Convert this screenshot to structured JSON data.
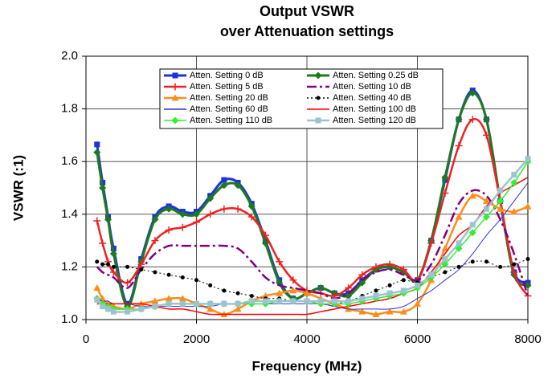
{
  "chart_data": {
    "type": "line",
    "title": "Output VSWR",
    "subtitle": "over Attenuation settings",
    "x_label": "Frequency (MHz)",
    "y_label": "VSWR (:1)",
    "xlim": [
      0,
      8000
    ],
    "xticks": [
      0,
      2000,
      4000,
      6000,
      8000
    ],
    "ylim": [
      1.0,
      2.0
    ],
    "yticks": [
      {
        "value": 1.0,
        "label": "1.0"
      },
      1.2,
      1.4,
      1.6,
      1.8,
      {
        "value": 2.0,
        "label": "2.0"
      }
    ],
    "grid": true,
    "legend": "top",
    "x": [
      200,
      300,
      400,
      500,
      750,
      1000,
      1250,
      1500,
      1750,
      2000,
      2250,
      2500,
      2750,
      3000,
      3250,
      3500,
      3750,
      4000,
      4250,
      4500,
      4750,
      5000,
      5250,
      5500,
      5750,
      6000,
      6250,
      6500,
      6750,
      7000,
      7250,
      7500,
      7750,
      8000
    ],
    "series": [
      {
        "name": "Atten. Setting 0 dB",
        "color": "#1a33dd",
        "marker": "square",
        "dash": "solid",
        "width": 3,
        "values": [
          1.665,
          1.52,
          1.39,
          1.27,
          1.06,
          1.23,
          1.39,
          1.43,
          1.41,
          1.41,
          1.47,
          1.53,
          1.52,
          1.44,
          1.3,
          1.15,
          1.08,
          1.1,
          1.12,
          1.1,
          1.1,
          1.15,
          1.19,
          1.2,
          1.18,
          1.15,
          1.3,
          1.53,
          1.76,
          1.87,
          1.76,
          1.45,
          1.18,
          1.14
        ]
      },
      {
        "name": "Atten. Setting 0.25 dB",
        "color": "#1e7a1e",
        "marker": "diamond",
        "dash": "solid",
        "width": 3,
        "values": [
          1.635,
          1.5,
          1.38,
          1.25,
          1.05,
          1.22,
          1.38,
          1.42,
          1.4,
          1.4,
          1.46,
          1.51,
          1.51,
          1.43,
          1.29,
          1.14,
          1.08,
          1.1,
          1.12,
          1.1,
          1.09,
          1.14,
          1.19,
          1.2,
          1.18,
          1.15,
          1.3,
          1.54,
          1.76,
          1.86,
          1.76,
          1.45,
          1.17,
          1.13
        ]
      },
      {
        "name": "Atten. Setting 5 dB",
        "color": "#ee2222",
        "marker": "plus",
        "dash": "solid",
        "width": 2.5,
        "values": [
          1.375,
          1.29,
          1.22,
          1.18,
          1.14,
          1.21,
          1.3,
          1.34,
          1.35,
          1.37,
          1.4,
          1.42,
          1.42,
          1.39,
          1.32,
          1.22,
          1.15,
          1.11,
          1.1,
          1.09,
          1.12,
          1.17,
          1.2,
          1.21,
          1.19,
          1.15,
          1.29,
          1.48,
          1.66,
          1.76,
          1.7,
          1.45,
          1.18,
          1.09
        ]
      },
      {
        "name": "Atten. Setting 10 dB",
        "color": "#800080",
        "marker": "none",
        "dash": "dashdot",
        "width": 2.5,
        "values": [
          1.2,
          1.18,
          1.17,
          1.16,
          1.12,
          1.19,
          1.25,
          1.28,
          1.28,
          1.28,
          1.28,
          1.28,
          1.27,
          1.22,
          1.16,
          1.13,
          1.12,
          1.11,
          1.1,
          1.08,
          1.1,
          1.15,
          1.18,
          1.19,
          1.17,
          1.15,
          1.21,
          1.32,
          1.44,
          1.49,
          1.47,
          1.38,
          1.25,
          1.09
        ]
      },
      {
        "name": "Atten. Setting 20 dB",
        "color": "#ff8c1a",
        "marker": "triangle",
        "dash": "solid",
        "width": 2.5,
        "values": [
          1.12,
          1.08,
          1.06,
          1.05,
          1.04,
          1.06,
          1.07,
          1.08,
          1.08,
          1.06,
          1.04,
          1.02,
          1.04,
          1.07,
          1.09,
          1.1,
          1.11,
          1.1,
          1.08,
          1.06,
          1.04,
          1.03,
          1.02,
          1.03,
          1.03,
          1.06,
          1.15,
          1.27,
          1.39,
          1.47,
          1.45,
          1.42,
          1.41,
          1.43
        ]
      },
      {
        "name": "Atten. Setting 40 dB",
        "color": "#000000",
        "marker": "circle",
        "dash": "dot",
        "width": 1,
        "values": [
          1.22,
          1.21,
          1.21,
          1.2,
          1.2,
          1.19,
          1.18,
          1.17,
          1.16,
          1.15,
          1.13,
          1.11,
          1.1,
          1.09,
          1.08,
          1.08,
          1.07,
          1.07,
          1.06,
          1.06,
          1.07,
          1.09,
          1.11,
          1.13,
          1.15,
          1.14,
          1.16,
          1.18,
          1.2,
          1.22,
          1.22,
          1.2,
          1.21,
          1.23
        ]
      },
      {
        "name": "Atten. Setting 60 dB",
        "color": "#3333cc",
        "marker": "none",
        "dash": "solid",
        "width": 1,
        "values": [
          1.08,
          1.07,
          1.07,
          1.06,
          1.06,
          1.05,
          1.05,
          1.05,
          1.05,
          1.05,
          1.05,
          1.06,
          1.06,
          1.06,
          1.06,
          1.06,
          1.06,
          1.06,
          1.06,
          1.05,
          1.04,
          1.04,
          1.04,
          1.04,
          1.05,
          1.08,
          1.11,
          1.15,
          1.19,
          1.25,
          1.32,
          1.38,
          1.45,
          1.52
        ]
      },
      {
        "name": "Atten. Setting 100 dB",
        "color": "#ff0000",
        "marker": "none",
        "dash": "solid",
        "width": 1.5,
        "values": [
          1.06,
          1.06,
          1.06,
          1.06,
          1.06,
          1.06,
          1.05,
          1.04,
          1.04,
          1.03,
          1.02,
          1.02,
          1.02,
          1.02,
          1.02,
          1.02,
          1.02,
          1.02,
          1.03,
          1.04,
          1.05,
          1.06,
          1.07,
          1.08,
          1.1,
          1.12,
          1.18,
          1.25,
          1.32,
          1.36,
          1.43,
          1.48,
          1.51,
          1.54
        ]
      },
      {
        "name": "Atten. Setting 110 dB",
        "color": "#33ee33",
        "marker": "diamond",
        "dash": "solid",
        "width": 1.5,
        "values": [
          1.08,
          1.06,
          1.05,
          1.04,
          1.04,
          1.04,
          1.05,
          1.06,
          1.06,
          1.06,
          1.06,
          1.06,
          1.06,
          1.06,
          1.06,
          1.07,
          1.07,
          1.07,
          1.06,
          1.06,
          1.06,
          1.07,
          1.08,
          1.09,
          1.1,
          1.12,
          1.16,
          1.21,
          1.27,
          1.33,
          1.39,
          1.45,
          1.52,
          1.6
        ]
      },
      {
        "name": "Atten. Setting 120 dB",
        "color": "#9cc3d0",
        "marker": "square",
        "dash": "solid",
        "width": 2.5,
        "values": [
          1.075,
          1.05,
          1.04,
          1.03,
          1.03,
          1.04,
          1.05,
          1.06,
          1.06,
          1.06,
          1.06,
          1.06,
          1.06,
          1.07,
          1.07,
          1.07,
          1.07,
          1.07,
          1.07,
          1.07,
          1.07,
          1.08,
          1.09,
          1.1,
          1.11,
          1.13,
          1.17,
          1.23,
          1.29,
          1.36,
          1.42,
          1.49,
          1.55,
          1.61
        ]
      }
    ]
  }
}
